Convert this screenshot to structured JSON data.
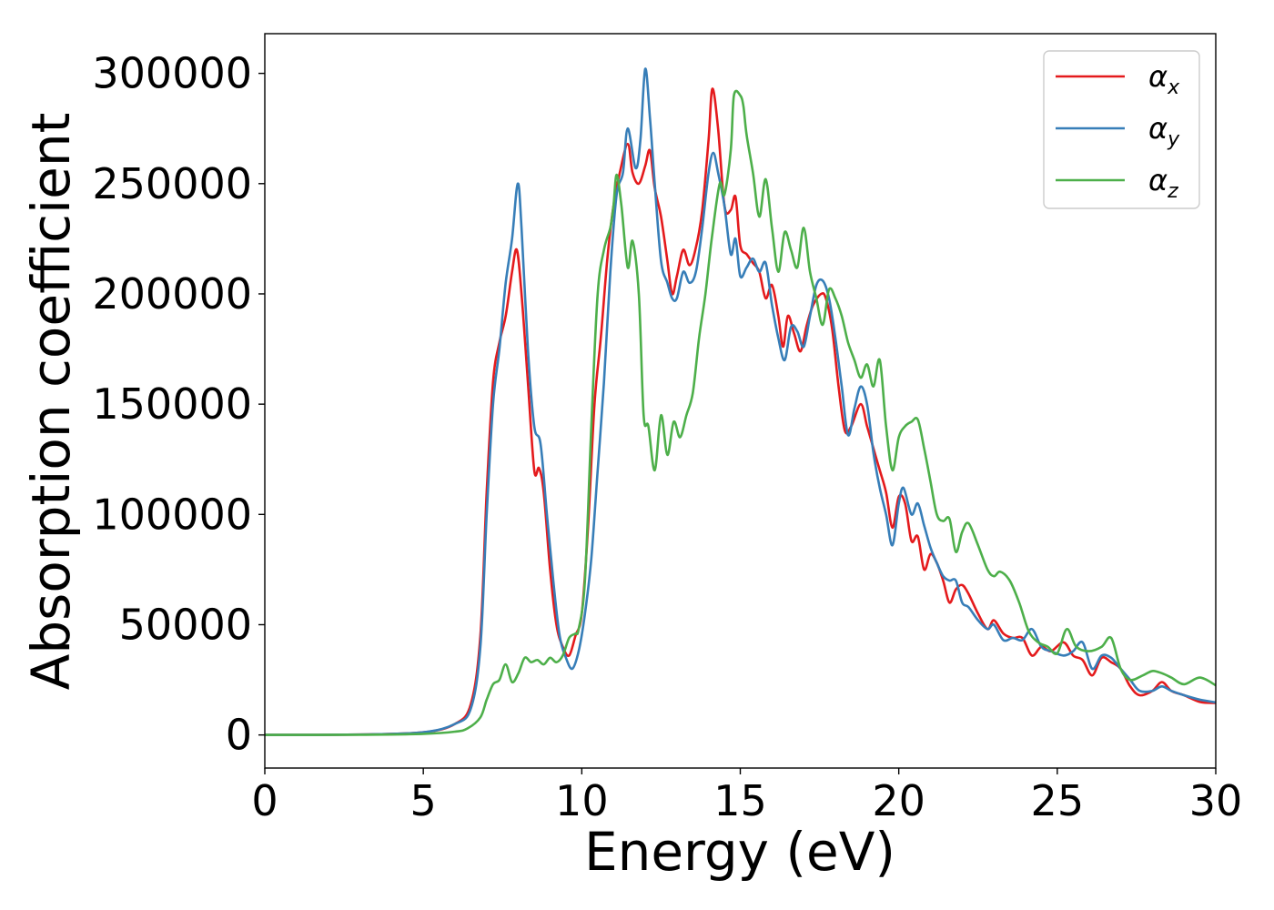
{
  "chart_data": {
    "type": "line",
    "xlabel": "Energy (eV)",
    "ylabel": "Absorption coefficient",
    "xlim": [
      0,
      30
    ],
    "ylim": [
      -15000,
      318000
    ],
    "xticks": [
      0,
      5,
      10,
      15,
      20,
      25,
      30
    ],
    "xtick_labels": [
      "0",
      "5",
      "10",
      "15",
      "20",
      "25",
      "30"
    ],
    "yticks": [
      0,
      50000,
      100000,
      150000,
      200000,
      250000,
      300000
    ],
    "ytick_labels": [
      "0",
      "50000",
      "100000",
      "150000",
      "200000",
      "250000",
      "300000"
    ],
    "grid": false,
    "legend_position": "top-right",
    "series": [
      {
        "name": "αx",
        "legend_symbol": "α",
        "legend_subscript": "x",
        "color": "#e41a1c",
        "x": [
          0,
          3,
          5,
          6,
          6.5,
          6.8,
          7.0,
          7.2,
          7.4,
          7.6,
          7.8,
          7.95,
          8.1,
          8.3,
          8.5,
          8.65,
          8.8,
          9.0,
          9.2,
          9.4,
          9.6,
          9.8,
          10.0,
          10.2,
          10.4,
          10.6,
          10.8,
          11.0,
          11.2,
          11.45,
          11.6,
          11.8,
          12.0,
          12.15,
          12.3,
          12.5,
          12.7,
          12.85,
          13.0,
          13.2,
          13.4,
          13.6,
          13.8,
          14.0,
          14.12,
          14.3,
          14.5,
          14.7,
          14.85,
          15.0,
          15.2,
          15.4,
          15.6,
          15.8,
          16.0,
          16.2,
          16.35,
          16.5,
          16.7,
          16.9,
          17.1,
          17.3,
          17.55,
          17.7,
          17.9,
          18.1,
          18.3,
          18.5,
          18.8,
          19.0,
          19.2,
          19.4,
          19.6,
          19.8,
          20.0,
          20.2,
          20.4,
          20.6,
          20.8,
          21.0,
          21.2,
          21.4,
          21.6,
          21.8,
          22.0,
          22.2,
          22.5,
          22.8,
          23.0,
          23.3,
          23.6,
          23.9,
          24.2,
          24.5,
          24.8,
          25.2,
          25.5,
          25.8,
          26.1,
          26.4,
          26.7,
          27.0,
          27.3,
          27.6,
          28.0,
          28.3,
          28.6,
          29.0,
          29.5,
          30.0
        ],
        "y": [
          0,
          200,
          1200,
          5000,
          14000,
          45000,
          110000,
          160000,
          178000,
          190000,
          210000,
          220000,
          200000,
          160000,
          120000,
          121000,
          110000,
          75000,
          50000,
          40000,
          36000,
          45000,
          55000,
          95000,
          150000,
          180000,
          215000,
          240000,
          255000,
          268000,
          255000,
          250000,
          258000,
          265000,
          248000,
          235000,
          215000,
          200000,
          208000,
          220000,
          213000,
          221000,
          238000,
          270000,
          293000,
          275000,
          240000,
          238000,
          244000,
          222000,
          218000,
          214000,
          210000,
          198000,
          204000,
          190000,
          176000,
          190000,
          182000,
          174000,
          186000,
          195000,
          200000,
          198000,
          184000,
          158000,
          138000,
          140000,
          150000,
          140000,
          130000,
          120000,
          110000,
          94000,
          108000,
          105000,
          88000,
          90000,
          75000,
          82000,
          78000,
          70000,
          60000,
          66000,
          68000,
          64000,
          55000,
          48000,
          52000,
          46000,
          44000,
          44000,
          36000,
          40000,
          38000,
          42000,
          36000,
          34000,
          27000,
          35000,
          33000,
          30000,
          22000,
          18000,
          20000,
          24000,
          20000,
          18000,
          15000,
          14500
        ]
      },
      {
        "name": "αy",
        "legend_symbol": "α",
        "legend_subscript": "y",
        "color": "#377eb8",
        "x": [
          0,
          3,
          5,
          6,
          6.5,
          6.8,
          7.0,
          7.2,
          7.4,
          7.6,
          7.8,
          7.98,
          8.1,
          8.3,
          8.5,
          8.7,
          8.9,
          9.1,
          9.3,
          9.5,
          9.7,
          9.9,
          10.1,
          10.3,
          10.5,
          10.7,
          10.9,
          11.1,
          11.3,
          11.45,
          11.7,
          11.85,
          12.0,
          12.15,
          12.3,
          12.5,
          12.7,
          12.85,
          13.0,
          13.2,
          13.4,
          13.6,
          13.8,
          14.0,
          14.15,
          14.3,
          14.5,
          14.7,
          14.85,
          15.0,
          15.2,
          15.4,
          15.6,
          15.8,
          16.0,
          16.2,
          16.4,
          16.6,
          16.8,
          17.0,
          17.2,
          17.4,
          17.6,
          17.8,
          18.0,
          18.2,
          18.4,
          18.6,
          18.8,
          19.0,
          19.2,
          19.4,
          19.6,
          19.8,
          20.0,
          20.15,
          20.4,
          20.6,
          20.8,
          21.0,
          21.2,
          21.4,
          21.6,
          21.8,
          22.0,
          22.2,
          22.5,
          22.8,
          23.0,
          23.3,
          23.6,
          23.9,
          24.2,
          24.5,
          24.8,
          25.2,
          25.5,
          25.8,
          26.1,
          26.4,
          26.7,
          27.0,
          27.3,
          27.6,
          28.0,
          28.3,
          28.6,
          29.0,
          29.5,
          30.0
        ],
        "y": [
          0,
          200,
          1200,
          5000,
          12000,
          40000,
          100000,
          150000,
          175000,
          205000,
          225000,
          250000,
          230000,
          175000,
          140000,
          132000,
          100000,
          70000,
          45000,
          35000,
          30000,
          38000,
          55000,
          80000,
          120000,
          160000,
          210000,
          245000,
          255000,
          275000,
          257000,
          270000,
          302000,
          280000,
          250000,
          215000,
          205000,
          198000,
          198000,
          210000,
          205000,
          210000,
          230000,
          255000,
          264000,
          255000,
          240000,
          218000,
          225000,
          208000,
          212000,
          216000,
          210000,
          214000,
          195000,
          180000,
          170000,
          185000,
          183000,
          176000,
          190000,
          204000,
          206000,
          198000,
          180000,
          158000,
          136000,
          148000,
          158000,
          150000,
          128000,
          112000,
          100000,
          86000,
          105000,
          112000,
          100000,
          105000,
          95000,
          85000,
          78000,
          72000,
          70000,
          70000,
          60000,
          58000,
          52000,
          48000,
          50000,
          43000,
          44000,
          43000,
          48000,
          40000,
          38000,
          36000,
          38000,
          42000,
          30000,
          36000,
          35000,
          30000,
          25000,
          20000,
          20000,
          22000,
          20000,
          18000,
          16000,
          14800
        ]
      },
      {
        "name": "αz",
        "legend_symbol": "α",
        "legend_subscript": "z",
        "color": "#4daf4a",
        "x": [
          0,
          3,
          5,
          6,
          6.4,
          6.8,
          7.0,
          7.2,
          7.4,
          7.6,
          7.8,
          8.0,
          8.2,
          8.4,
          8.6,
          8.8,
          9.0,
          9.2,
          9.4,
          9.6,
          9.8,
          9.9,
          10.1,
          10.3,
          10.5,
          10.7,
          10.9,
          11.0,
          11.1,
          11.25,
          11.45,
          11.6,
          11.8,
          11.95,
          12.1,
          12.3,
          12.5,
          12.7,
          12.9,
          13.1,
          13.3,
          13.5,
          13.7,
          13.9,
          14.1,
          14.35,
          14.5,
          14.7,
          14.8,
          15.0,
          15.1,
          15.2,
          15.4,
          15.6,
          15.8,
          16.0,
          16.2,
          16.4,
          16.6,
          16.8,
          17.0,
          17.2,
          17.4,
          17.6,
          17.8,
          18.0,
          18.2,
          18.4,
          18.6,
          18.8,
          19.0,
          19.2,
          19.4,
          19.6,
          19.8,
          20.0,
          20.2,
          20.4,
          20.6,
          20.8,
          21.0,
          21.2,
          21.4,
          21.6,
          21.8,
          22.0,
          22.2,
          22.5,
          22.8,
          23.0,
          23.2,
          23.5,
          23.8,
          24.1,
          24.4,
          24.7,
          25.0,
          25.3,
          25.6,
          26.0,
          26.4,
          26.7,
          27.0,
          27.3,
          27.7,
          28.0,
          28.3,
          28.6,
          29.0,
          29.5,
          30.0
        ],
        "y": [
          0,
          100,
          500,
          1500,
          3000,
          8000,
          16000,
          23000,
          25000,
          32000,
          24000,
          28000,
          35000,
          33000,
          34000,
          32000,
          35000,
          33000,
          36000,
          44000,
          46000,
          48000,
          70000,
          140000,
          200000,
          220000,
          230000,
          240000,
          254000,
          240000,
          212000,
          224000,
          200000,
          145000,
          140000,
          120000,
          145000,
          127000,
          142000,
          135000,
          145000,
          155000,
          180000,
          200000,
          225000,
          250000,
          245000,
          265000,
          290000,
          290000,
          285000,
          272000,
          255000,
          235000,
          252000,
          230000,
          210000,
          228000,
          220000,
          212000,
          230000,
          210000,
          198000,
          186000,
          202000,
          198000,
          190000,
          178000,
          170000,
          162000,
          168000,
          158000,
          170000,
          140000,
          120000,
          135000,
          140000,
          142000,
          143000,
          130000,
          115000,
          100000,
          97000,
          98000,
          83000,
          92000,
          96000,
          86000,
          75000,
          72000,
          74000,
          70000,
          60000,
          47000,
          42000,
          40000,
          37000,
          48000,
          40000,
          38000,
          40000,
          44000,
          30000,
          25000,
          27000,
          29000,
          28000,
          26000,
          23000,
          26000,
          22500
        ]
      }
    ]
  }
}
